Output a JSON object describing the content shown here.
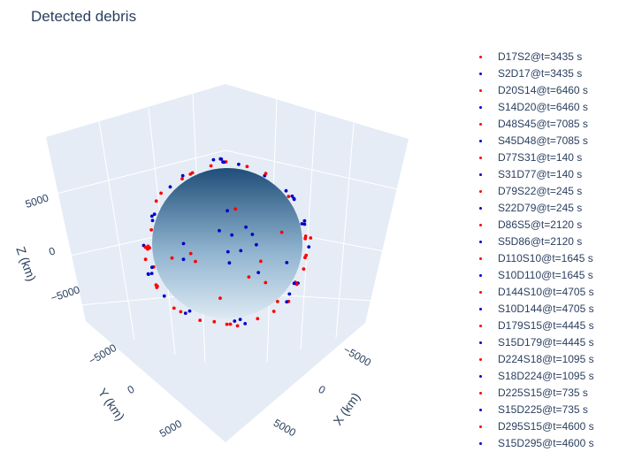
{
  "chart_data": {
    "type": "scatter3d",
    "title": "Detected debris",
    "axes": {
      "x": {
        "label": "X (km)",
        "ticks": [
          -5000,
          0,
          5000
        ],
        "tick_labels": [
          "−5000",
          "0",
          "5000"
        ]
      },
      "y": {
        "label": "Y (km)",
        "ticks": [
          -5000,
          0,
          5000
        ],
        "tick_labels": [
          "−5000",
          "0",
          "5000"
        ]
      },
      "z": {
        "label": "Z (km)",
        "ticks": [
          -5000,
          0,
          5000
        ],
        "tick_labels": [
          "−5000",
          "0",
          "5000"
        ]
      }
    },
    "sphere": {
      "name": "Earth",
      "colorscale": [
        "#1f4e79",
        "#8fb3cf",
        "#dce9f2"
      ]
    },
    "legend_placement": "right",
    "colors": {
      "red": "#ff0000",
      "blue": "#0000cc",
      "scene_bg": "#e5ecf6",
      "grid": "#ffffff"
    },
    "series": [
      {
        "name": "D17S2@t=3435 s",
        "color": "#ff0000"
      },
      {
        "name": "S2D17@t=3435 s",
        "color": "#0000cc"
      },
      {
        "name": "D20S14@t=6460 s",
        "color": "#ff0000"
      },
      {
        "name": "S14D20@t=6460 s",
        "color": "#0000cc"
      },
      {
        "name": "D48S45@t=7085 s",
        "color": "#ff0000"
      },
      {
        "name": "S45D48@t=7085 s",
        "color": "#0000cc"
      },
      {
        "name": "D77S31@t=140 s",
        "color": "#ff0000"
      },
      {
        "name": "S31D77@t=140 s",
        "color": "#0000cc"
      },
      {
        "name": "D79S22@t=245 s",
        "color": "#ff0000"
      },
      {
        "name": "S22D79@t=245 s",
        "color": "#0000cc"
      },
      {
        "name": "D86S5@t=2120 s",
        "color": "#ff0000"
      },
      {
        "name": "S5D86@t=2120 s",
        "color": "#0000cc"
      },
      {
        "name": "D110S10@t=1645 s",
        "color": "#ff0000"
      },
      {
        "name": "S10D110@t=1645 s",
        "color": "#0000cc"
      },
      {
        "name": "D144S10@t=4705 s",
        "color": "#ff0000"
      },
      {
        "name": "S10D144@t=4705 s",
        "color": "#0000cc"
      },
      {
        "name": "D179S15@t=4445 s",
        "color": "#ff0000"
      },
      {
        "name": "S15D179@t=4445 s",
        "color": "#0000cc"
      },
      {
        "name": "D224S18@t=1095 s",
        "color": "#ff0000"
      },
      {
        "name": "S18D224@t=1095 s",
        "color": "#0000cc"
      },
      {
        "name": "D225S15@t=735 s",
        "color": "#ff0000"
      },
      {
        "name": "S15D225@t=735 s",
        "color": "#0000cc"
      },
      {
        "name": "D295S15@t=4600 s",
        "color": "#ff0000"
      },
      {
        "name": "S15D295@t=4600 s",
        "color": "#0000cc"
      }
    ]
  }
}
